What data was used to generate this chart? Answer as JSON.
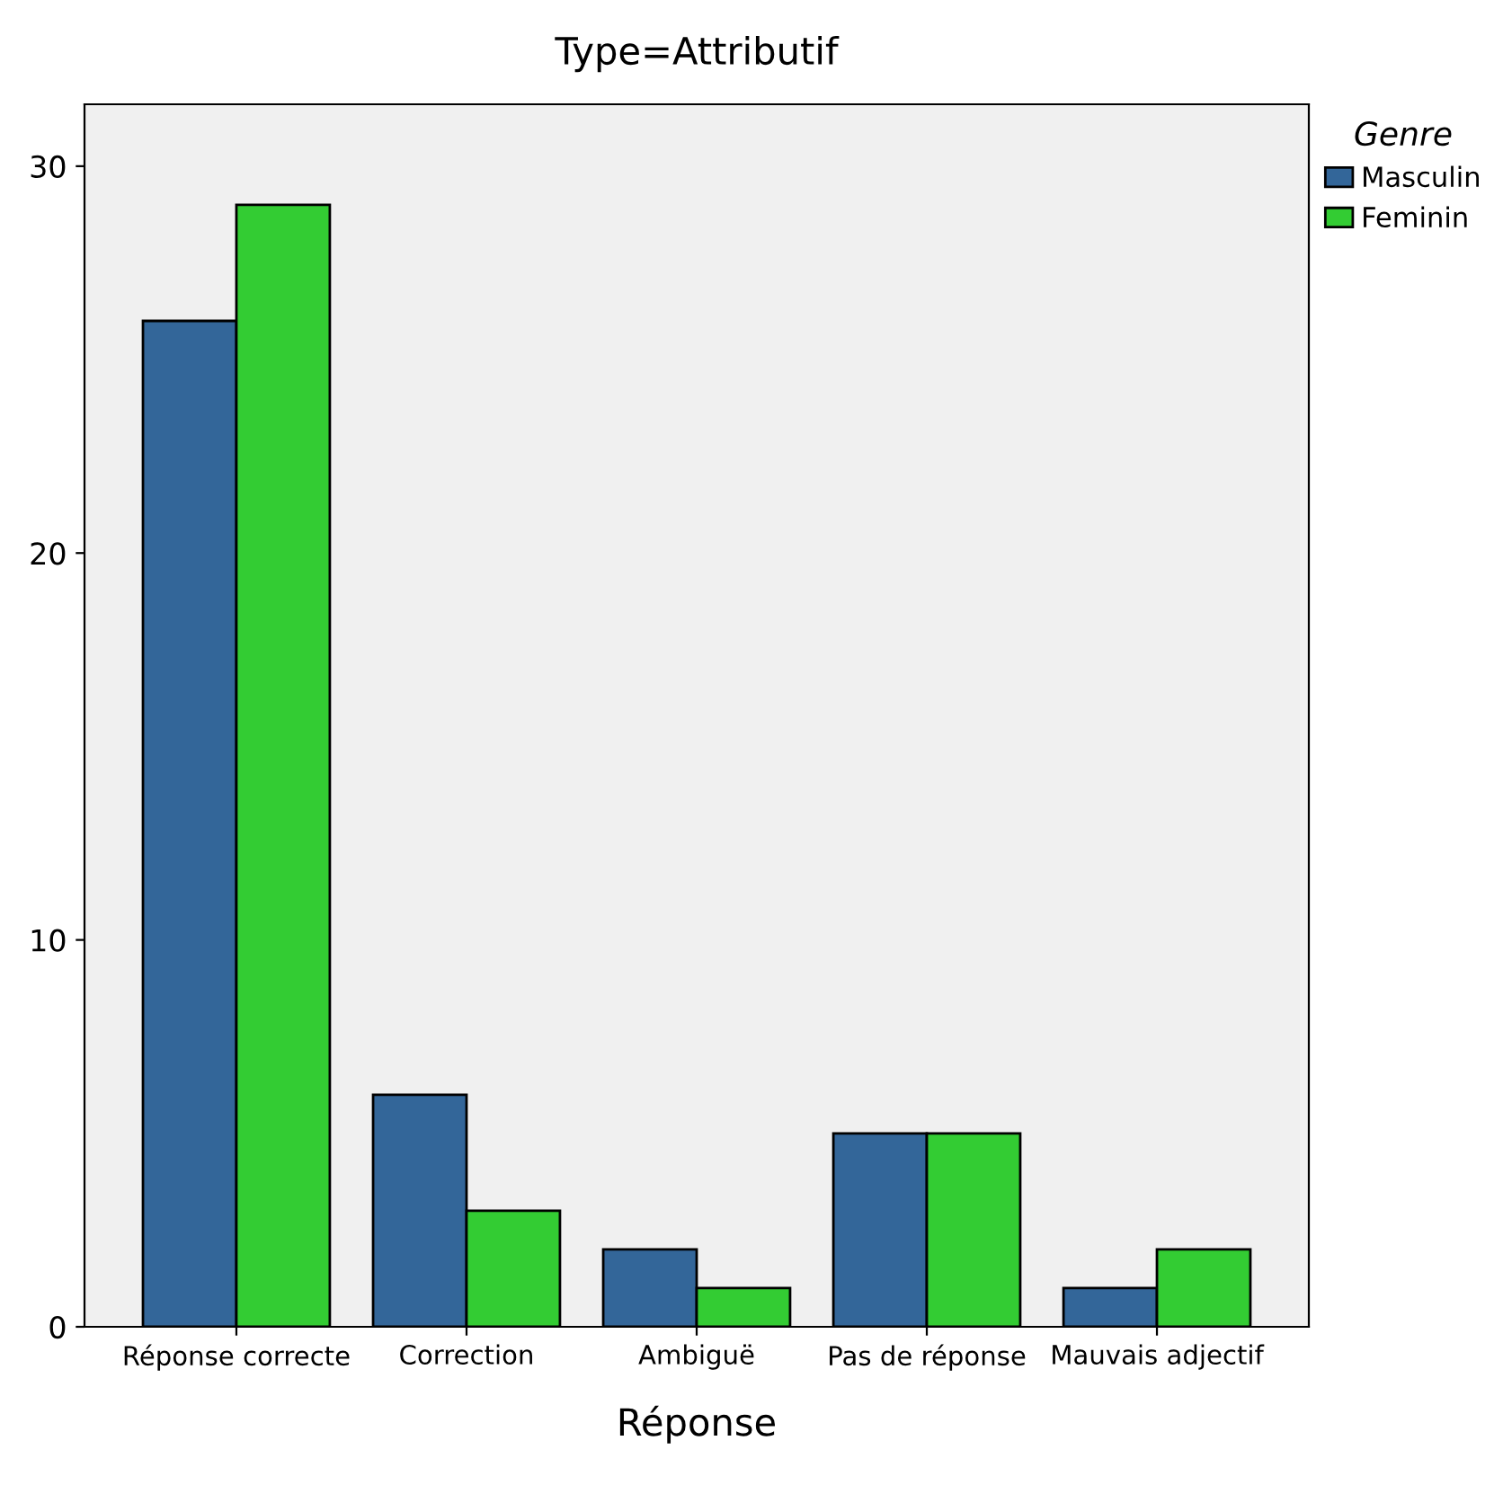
{
  "chart_data": {
    "type": "bar",
    "title": "Type=Attributif",
    "xlabel": "Réponse",
    "legend_title": "Genre",
    "legend": "top right",
    "grid": false,
    "categories": [
      "Réponse correcte",
      "Correction",
      "Ambiguë",
      "Pas de réponse",
      "Mauvais adjectif"
    ],
    "series": [
      {
        "name": "Masculin",
        "color": "#336699",
        "values": [
          26,
          6,
          2,
          5,
          1
        ]
      },
      {
        "name": "Feminin",
        "color": "#33cc33",
        "values": [
          29,
          3,
          1,
          5,
          2
        ]
      }
    ],
    "ylim": [
      0,
      31.6
    ],
    "yticks": [
      0,
      10,
      20,
      30
    ]
  }
}
